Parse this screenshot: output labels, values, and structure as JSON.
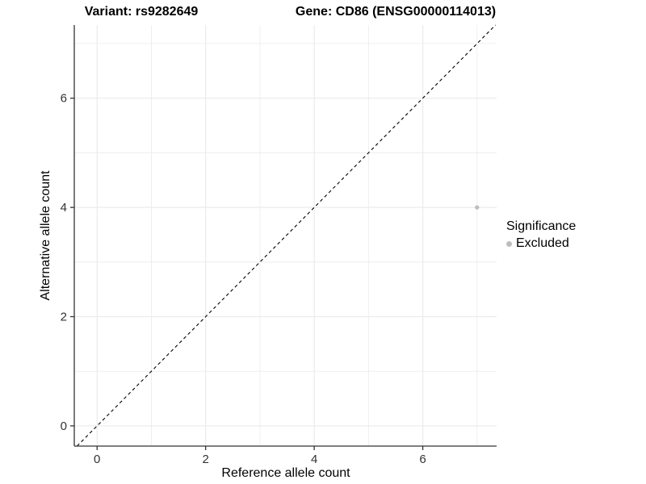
{
  "chart_data": {
    "type": "scatter",
    "title_left": "Variant: rs9282649",
    "title_right": "Gene: CD86 (ENSG00000114013)",
    "xlabel": "Reference allele count",
    "ylabel": "Alternative allele count",
    "xlim": [
      -0.42,
      7.36
    ],
    "ylim": [
      -0.37,
      7.34
    ],
    "x_ticks": [
      0,
      2,
      4,
      6
    ],
    "y_ticks": [
      0,
      2,
      4,
      6
    ],
    "x_minor_ticks": [
      1,
      3,
      5,
      7
    ],
    "y_minor_ticks": [
      1,
      3,
      5,
      7
    ],
    "grid": true,
    "points": [
      {
        "x": 7,
        "y": 4,
        "significance": "Excluded"
      }
    ],
    "identity_line": {
      "style": "dashed",
      "from": -0.37,
      "to": 7.34
    },
    "legend": {
      "title": "Significance",
      "position": "right",
      "items": [
        {
          "label": "Excluded",
          "color": "#bdbdbd"
        }
      ]
    },
    "colors": {
      "point_excluded": "#bdbdbd",
      "gridline": "#ebebeb",
      "axis_line": "#333333",
      "dashed_line": "#000000",
      "background": "#ffffff"
    }
  }
}
